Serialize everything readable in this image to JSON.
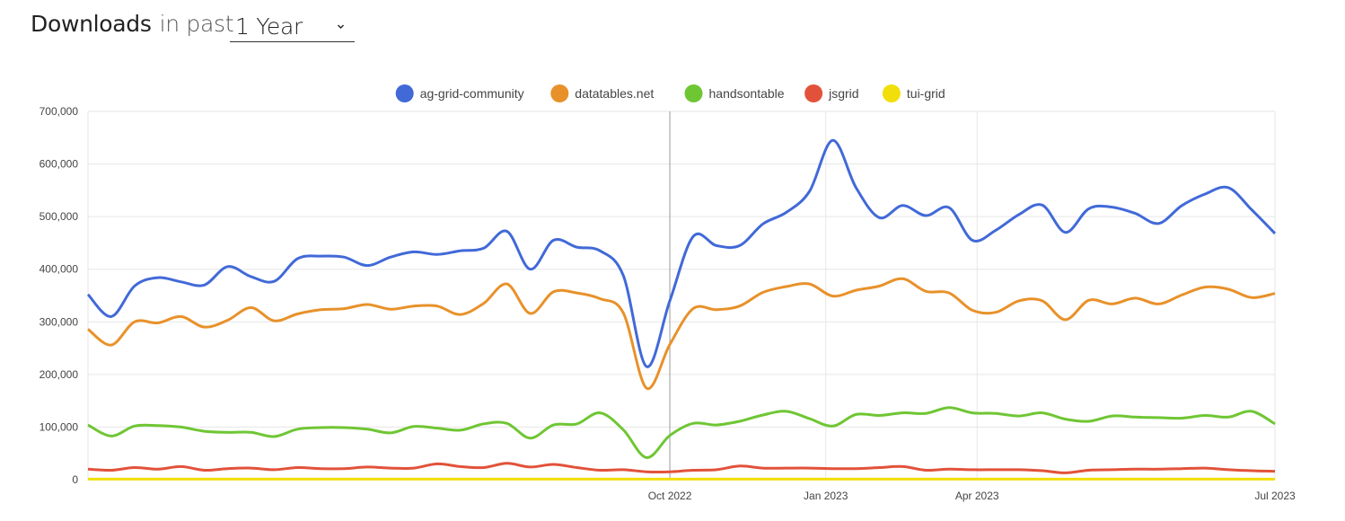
{
  "header": {
    "title": "Downloads",
    "subtitle": "in past",
    "period": "1 Year"
  },
  "chart_data": {
    "type": "line",
    "x_labels": [
      {
        "label": "Oct 2022",
        "week": 26
      },
      {
        "label": "Jan 2023",
        "week": 32.7
      },
      {
        "label": "Apr 2023",
        "week": 39.2
      },
      {
        "label": "Jul 2023",
        "week": 52
      }
    ],
    "ylim": [
      0,
      700000
    ],
    "yticks": [
      0,
      100000,
      200000,
      300000,
      400000,
      500000,
      600000,
      700000
    ],
    "ytick_labels": [
      "0",
      "100,000",
      "200,000",
      "300,000",
      "400,000",
      "500,000",
      "600,000",
      "700,000"
    ],
    "legend_position": "top",
    "grid": true,
    "series": [
      {
        "name": "ag-grid-community",
        "color": "#4169d8",
        "values": [
          352000,
          310000,
          368000,
          384000,
          376000,
          370000,
          405000,
          386000,
          377000,
          420000,
          425000,
          423000,
          407000,
          423000,
          433000,
          428000,
          435000,
          440000,
          472000,
          400000,
          455000,
          442000,
          435000,
          388000,
          215000,
          340000,
          462000,
          445000,
          445000,
          486000,
          508000,
          548000,
          645000,
          555000,
          498000,
          521000,
          502000,
          517000,
          455000,
          474000,
          504000,
          522000,
          470000,
          515000,
          518000,
          506000,
          487000,
          521000,
          543000,
          555000,
          513000,
          468000
        ]
      },
      {
        "name": "datatables.net",
        "color": "#e8912a",
        "values": [
          286000,
          256000,
          300000,
          298000,
          310000,
          290000,
          303000,
          327000,
          302000,
          315000,
          323000,
          325000,
          333000,
          324000,
          330000,
          330000,
          314000,
          335000,
          372000,
          316000,
          357000,
          355000,
          344000,
          317000,
          174000,
          257000,
          325000,
          323000,
          330000,
          356000,
          367000,
          372000,
          349000,
          360000,
          368000,
          382000,
          358000,
          355000,
          322000,
          318000,
          340000,
          340000,
          304000,
          341000,
          334000,
          345000,
          334000,
          351000,
          366000,
          362000,
          346000,
          354000
        ]
      },
      {
        "name": "handsontable",
        "color": "#6fc634",
        "values": [
          104000,
          83000,
          102000,
          103000,
          100000,
          92000,
          90000,
          90000,
          82000,
          96000,
          99000,
          99000,
          96000,
          89000,
          101000,
          98000,
          94000,
          106000,
          107000,
          79000,
          104000,
          106000,
          127000,
          95000,
          42000,
          84000,
          107000,
          104000,
          111000,
          123000,
          130000,
          116000,
          102000,
          124000,
          122000,
          127000,
          126000,
          137000,
          127000,
          126000,
          121000,
          127000,
          115000,
          111000,
          121000,
          119000,
          118000,
          117000,
          122000,
          119000,
          130000,
          106000
        ]
      },
      {
        "name": "jsgrid",
        "color": "#e2523a",
        "values": [
          20000,
          18000,
          23000,
          20000,
          25000,
          18000,
          21000,
          22000,
          19000,
          23000,
          21000,
          21000,
          24000,
          22000,
          22000,
          30000,
          25000,
          23000,
          31000,
          24000,
          29000,
          23000,
          18000,
          19000,
          15000,
          15000,
          18000,
          19000,
          26000,
          22000,
          22000,
          22000,
          21000,
          21000,
          23000,
          25000,
          18000,
          20000,
          19000,
          19000,
          19000,
          17000,
          13000,
          18000,
          19000,
          20000,
          20000,
          21000,
          22000,
          19000,
          17000,
          16000
        ]
      },
      {
        "name": "tui-grid",
        "color": "#f2de0a",
        "values": [
          1000,
          1000,
          1000,
          1000,
          1000,
          1000,
          1000,
          1000,
          1000,
          1000,
          1000,
          1000,
          1000,
          1000,
          1000,
          1000,
          1000,
          1000,
          1000,
          1000,
          1000,
          1000,
          1000,
          1000,
          1000,
          1000,
          1000,
          1000,
          1000,
          1000,
          1000,
          1000,
          1000,
          1000,
          1000,
          1000,
          1000,
          1000,
          1000,
          1000,
          1000,
          1000,
          1000,
          1000,
          1000,
          1000,
          1000,
          1000,
          1000,
          1000,
          1000,
          1000
        ]
      }
    ]
  }
}
